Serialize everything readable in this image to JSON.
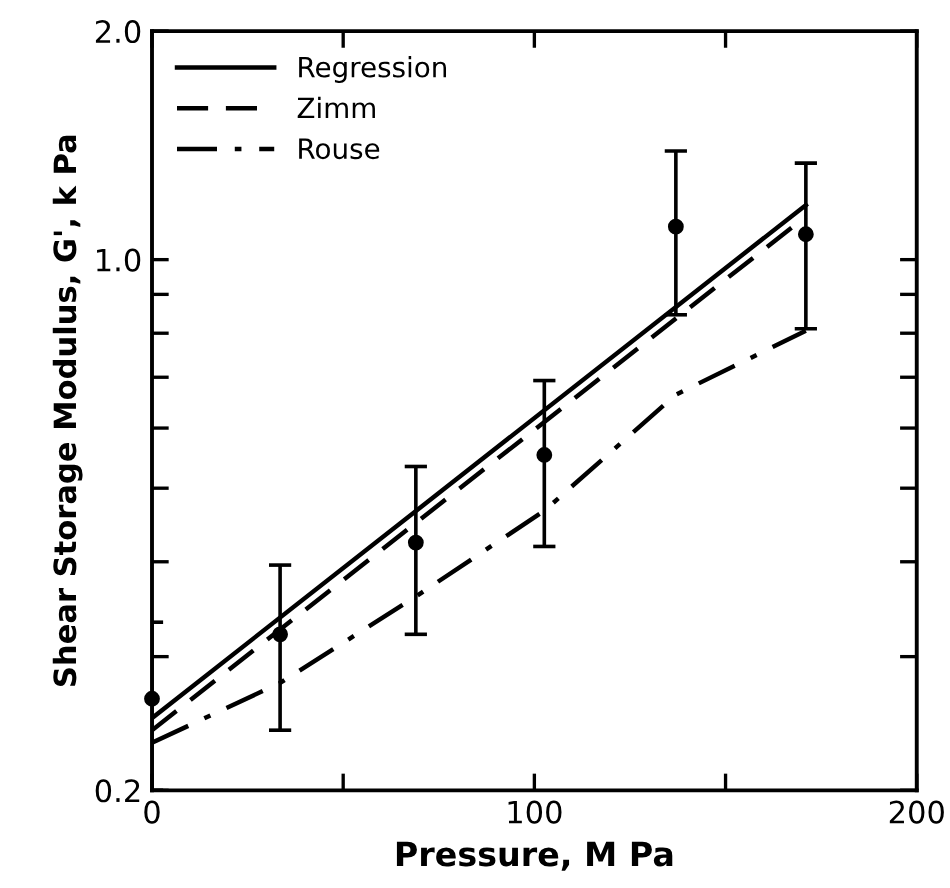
{
  "chart_data": {
    "type": "line",
    "xlabel": "Pressure, M Pa",
    "ylabel": "Shear Storage Modulus, G', k Pa",
    "log": "y",
    "xlim": [
      0,
      200
    ],
    "ylim": [
      0.2,
      2.0
    ],
    "xticks": [
      0,
      {
        "value": 50,
        "label": null
      },
      100,
      {
        "value": 150,
        "label": null
      },
      200
    ],
    "yticks": [
      {
        "value": 0.2,
        "label": "0.2"
      },
      {
        "value": 0.3,
        "label": null
      },
      {
        "value": 0.4,
        "label": null
      },
      {
        "value": 0.5,
        "label": null
      },
      {
        "value": 0.6,
        "label": null
      },
      {
        "value": 0.7,
        "label": null
      },
      {
        "value": 0.8,
        "label": null
      },
      {
        "value": 0.9,
        "label": null
      },
      {
        "value": 1.0,
        "label": "1.0"
      },
      {
        "value": 2.0,
        "label": "2.0"
      }
    ],
    "grid": false,
    "legend": "top left",
    "series": [
      {
        "name": "Regression",
        "color": "#000000",
        "line_style": "solid",
        "marker": "none",
        "x": [
          0,
          171
        ],
        "values": [
          0.249,
          1.18
        ]
      },
      {
        "name": "Zimm",
        "color": "#000000",
        "line_style": "dashed",
        "marker": "none",
        "x": [
          0,
          171
        ],
        "values": [
          0.24,
          1.14
        ]
      },
      {
        "name": "Rouse",
        "color": "#000000",
        "line_style": "dashdot",
        "marker": "none",
        "x": [
          0,
          33.5,
          69,
          102.6,
          137,
          171
        ],
        "values": [
          0.231,
          0.277,
          0.36,
          0.467,
          0.664,
          0.806
        ]
      },
      {
        "type": "scatter",
        "color": "#000000",
        "marker": "circle",
        "x": [
          0,
          33.5,
          69,
          102.6,
          137,
          171
        ],
        "values": [
          0.264,
          0.321,
          0.424,
          0.553,
          1.105,
          1.08
        ],
        "errors": [
          [
            0.2,
            0.333
          ],
          [
            0.24,
            0.396
          ],
          [
            0.321,
            0.534
          ],
          [
            0.419,
            0.693
          ],
          [
            0.846,
            1.39
          ],
          [
            0.811,
            1.34
          ]
        ]
      }
    ]
  }
}
